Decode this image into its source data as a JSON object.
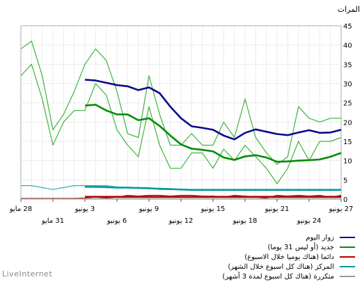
{
  "chart_data": {
    "type": "line",
    "ylabel": "المرات",
    "ylim": [
      0,
      45
    ],
    "yticks": [
      0,
      5,
      10,
      15,
      20,
      25,
      30,
      35,
      40,
      45
    ],
    "x_day_labels": [
      {
        "day": 0,
        "row": 1,
        "text": "27 يونيو"
      },
      {
        "day": 3,
        "row": 2,
        "text": "24 يونيو"
      },
      {
        "day": 6,
        "row": 1,
        "text": "21 يونيو"
      },
      {
        "day": 9,
        "row": 2,
        "text": "18 يونيو"
      },
      {
        "day": 12,
        "row": 1,
        "text": "15 يونيو"
      },
      {
        "day": 15,
        "row": 2,
        "text": "12 يونيو"
      },
      {
        "day": 18,
        "row": 1,
        "text": "9 يونيو"
      },
      {
        "day": 21,
        "row": 2,
        "text": "6 يونيو"
      },
      {
        "day": 24,
        "row": 1,
        "text": "3 يونيو"
      },
      {
        "day": 27,
        "row": 2,
        "text": "31 مايو"
      },
      {
        "day": 30,
        "row": 1,
        "text": "28 مايو"
      }
    ],
    "series": [
      {
        "name": "زوار اليوم",
        "color": "#3cb43c",
        "width": 1.2,
        "points": [
          [
            0,
            21
          ],
          [
            1,
            21
          ],
          [
            2,
            20
          ],
          [
            3,
            21
          ],
          [
            4,
            24
          ],
          [
            5,
            11
          ],
          [
            6,
            9
          ],
          [
            7,
            12
          ],
          [
            8,
            16
          ],
          [
            9,
            26
          ],
          [
            10,
            16
          ],
          [
            11,
            20
          ],
          [
            12,
            14
          ],
          [
            13,
            14
          ],
          [
            14,
            17
          ],
          [
            15,
            14
          ],
          [
            16,
            14
          ],
          [
            17,
            22
          ],
          [
            18,
            32
          ],
          [
            19,
            16
          ],
          [
            20,
            17
          ],
          [
            21,
            28
          ],
          [
            22,
            36
          ],
          [
            23,
            39
          ],
          [
            24,
            35
          ],
          [
            25,
            28
          ],
          [
            26,
            22
          ],
          [
            27,
            18
          ],
          [
            28,
            32
          ],
          [
            29,
            41
          ],
          [
            30,
            39
          ]
        ]
      },
      {
        "name": "زوار اليوم",
        "color": "#0a0a8c",
        "width": 2.6,
        "points": [
          [
            0,
            18
          ],
          [
            1,
            17.3
          ],
          [
            2,
            17.2
          ],
          [
            3,
            17.9
          ],
          [
            4,
            17.3
          ],
          [
            5,
            16.6
          ],
          [
            6,
            16.9
          ],
          [
            7,
            17.5
          ],
          [
            8,
            18.1
          ],
          [
            9,
            17.2
          ],
          [
            10,
            15.5
          ],
          [
            11,
            16.5
          ],
          [
            12,
            18
          ],
          [
            13,
            18.5
          ],
          [
            14,
            18.9
          ],
          [
            15,
            21
          ],
          [
            16,
            24
          ],
          [
            17,
            27.5
          ],
          [
            18,
            29
          ],
          [
            19,
            28.3
          ],
          [
            20,
            29.3
          ],
          [
            21,
            29.6
          ],
          [
            22,
            30.2
          ],
          [
            23,
            30.8
          ],
          [
            24,
            31
          ]
        ]
      },
      {
        "name": "جديد (أو ليس 31 يوما)",
        "color": "#3cb43c",
        "width": 1.2,
        "points": [
          [
            0,
            16
          ],
          [
            1,
            15
          ],
          [
            2,
            15
          ],
          [
            3,
            10
          ],
          [
            4,
            15
          ],
          [
            5,
            8
          ],
          [
            6,
            4
          ],
          [
            7,
            8
          ],
          [
            8,
            11
          ],
          [
            9,
            14
          ],
          [
            10,
            10
          ],
          [
            11,
            13
          ],
          [
            12,
            8
          ],
          [
            13,
            12
          ],
          [
            14,
            12
          ],
          [
            15,
            8
          ],
          [
            16,
            8
          ],
          [
            17,
            14
          ],
          [
            18,
            24
          ],
          [
            19,
            11
          ],
          [
            20,
            14
          ],
          [
            21,
            18
          ],
          [
            22,
            27
          ],
          [
            23,
            30
          ],
          [
            24,
            23
          ],
          [
            25,
            23
          ],
          [
            26,
            20
          ],
          [
            27,
            14
          ],
          [
            28,
            26
          ],
          [
            29,
            35
          ],
          [
            30,
            32
          ]
        ]
      },
      {
        "name": "جديد (أو ليس 31 يوما)",
        "color": "#058c05",
        "width": 2.6,
        "points": [
          [
            0,
            12
          ],
          [
            1,
            11
          ],
          [
            2,
            10.3
          ],
          [
            3,
            10.1
          ],
          [
            4,
            10
          ],
          [
            5,
            9.8
          ],
          [
            6,
            9.7
          ],
          [
            7,
            10.8
          ],
          [
            8,
            11.4
          ],
          [
            9,
            11.1
          ],
          [
            10,
            10.2
          ],
          [
            11,
            10.8
          ],
          [
            12,
            12.4
          ],
          [
            13,
            12.8
          ],
          [
            14,
            13.1
          ],
          [
            15,
            14.2
          ],
          [
            16,
            16.5
          ],
          [
            17,
            19
          ],
          [
            18,
            21
          ],
          [
            19,
            20.5
          ],
          [
            20,
            22
          ],
          [
            21,
            22
          ],
          [
            22,
            23
          ],
          [
            23,
            24.5
          ],
          [
            24,
            24.3
          ]
        ]
      },
      {
        "name": "دائما (هناك يوميا خلال الاسبوع)",
        "color": "#cc0000",
        "width": 1.2,
        "points": [
          [
            0,
            1
          ],
          [
            1,
            0.5
          ],
          [
            2,
            1
          ],
          [
            3,
            0.8
          ],
          [
            4,
            1
          ],
          [
            5,
            0.8
          ],
          [
            6,
            1
          ],
          [
            7,
            0.3
          ],
          [
            8,
            0.5
          ],
          [
            9,
            0.8
          ],
          [
            10,
            1
          ],
          [
            11,
            0.5
          ],
          [
            12,
            0.8
          ],
          [
            13,
            0.8
          ],
          [
            14,
            1
          ],
          [
            15,
            1
          ],
          [
            16,
            0.8
          ],
          [
            17,
            1
          ],
          [
            18,
            1
          ],
          [
            19,
            0.8
          ],
          [
            20,
            1
          ],
          [
            21,
            0.5
          ],
          [
            22,
            0.3
          ],
          [
            23,
            0.5
          ],
          [
            24,
            0.3
          ],
          [
            25,
            0.2
          ],
          [
            26,
            0.2
          ],
          [
            27,
            0.2
          ],
          [
            28,
            0.2
          ],
          [
            29,
            0.2
          ],
          [
            30,
            0.2
          ]
        ]
      },
      {
        "name": "دائما (هناك يوميا خلال الاسبوع)",
        "color": "#b40000",
        "width": 2.6,
        "points": [
          [
            0,
            0.6
          ],
          [
            1,
            0.6
          ],
          [
            2,
            0.6
          ],
          [
            3,
            0.6
          ],
          [
            4,
            0.6
          ],
          [
            5,
            0.6
          ],
          [
            6,
            0.6
          ],
          [
            7,
            0.6
          ],
          [
            8,
            0.6
          ],
          [
            9,
            0.6
          ],
          [
            10,
            0.6
          ],
          [
            11,
            0.6
          ],
          [
            12,
            0.6
          ],
          [
            13,
            0.6
          ],
          [
            14,
            0.6
          ],
          [
            15,
            0.6
          ],
          [
            16,
            0.6
          ],
          [
            17,
            0.6
          ],
          [
            18,
            0.6
          ],
          [
            19,
            0.6
          ],
          [
            20,
            0.6
          ],
          [
            21,
            0.6
          ],
          [
            22,
            0.6
          ],
          [
            23,
            0.6
          ],
          [
            24,
            0.6
          ]
        ]
      },
      {
        "name": "المركز (هناك كل اسبوع خلال الشهر)",
        "color": "#2ab4b4",
        "width": 1.2,
        "points": [
          [
            0,
            2.5
          ],
          [
            1,
            2.5
          ],
          [
            2,
            2.5
          ],
          [
            3,
            2.5
          ],
          [
            4,
            2.5
          ],
          [
            5,
            2.5
          ],
          [
            6,
            2.5
          ],
          [
            7,
            2.5
          ],
          [
            8,
            2.5
          ],
          [
            9,
            2.5
          ],
          [
            10,
            2.5
          ],
          [
            11,
            2.5
          ],
          [
            12,
            2.5
          ],
          [
            13,
            2.5
          ],
          [
            14,
            2.5
          ],
          [
            15,
            2.5
          ],
          [
            16,
            2.5
          ],
          [
            17,
            2.5
          ],
          [
            18,
            3
          ],
          [
            19,
            3
          ],
          [
            20,
            3
          ],
          [
            21,
            3.2
          ],
          [
            22,
            3.5
          ],
          [
            23,
            3.5
          ],
          [
            24,
            3.5
          ],
          [
            25,
            3.5
          ],
          [
            26,
            3
          ],
          [
            27,
            2.5
          ],
          [
            28,
            3
          ],
          [
            29,
            3.5
          ],
          [
            30,
            3.5
          ]
        ]
      },
      {
        "name": "المركز (هناك كل اسبوع خلال الشهر)",
        "color": "#009b9b",
        "width": 2.6,
        "points": [
          [
            0,
            2.4
          ],
          [
            1,
            2.4
          ],
          [
            2,
            2.4
          ],
          [
            3,
            2.4
          ],
          [
            4,
            2.4
          ],
          [
            5,
            2.4
          ],
          [
            6,
            2.4
          ],
          [
            7,
            2.4
          ],
          [
            8,
            2.4
          ],
          [
            9,
            2.4
          ],
          [
            10,
            2.4
          ],
          [
            11,
            2.4
          ],
          [
            12,
            2.4
          ],
          [
            13,
            2.4
          ],
          [
            14,
            2.4
          ],
          [
            15,
            2.5
          ],
          [
            16,
            2.6
          ],
          [
            17,
            2.7
          ],
          [
            18,
            2.8
          ],
          [
            19,
            2.9
          ],
          [
            20,
            3
          ],
          [
            21,
            3
          ],
          [
            22,
            3.1
          ],
          [
            23,
            3.2
          ],
          [
            24,
            3.2
          ]
        ]
      },
      {
        "name": "متكررة (هناك كل اسبوع لمدة 3 أشهر)",
        "color": "#999999",
        "width": 1.2,
        "points": [
          [
            0,
            0.1
          ],
          [
            30,
            0.1
          ]
        ]
      }
    ],
    "legend": [
      {
        "label": "زوار اليوم",
        "color": "#0a0a8c"
      },
      {
        "label": "جديد (أو ليس 31 يوما)",
        "color": "#058c05"
      },
      {
        "label": "دائما (هناك يوميا خلال الاسبوع)",
        "color": "#b40000"
      },
      {
        "label": "المركز (هناك كل اسبوع خلال الشهر)",
        "color": "#009b9b"
      },
      {
        "label": "متكررة (هناك كل اسبوع لمدة 3 أشهر)",
        "color": "#999999"
      }
    ],
    "grid": true
  },
  "brand": "LiveInternet"
}
